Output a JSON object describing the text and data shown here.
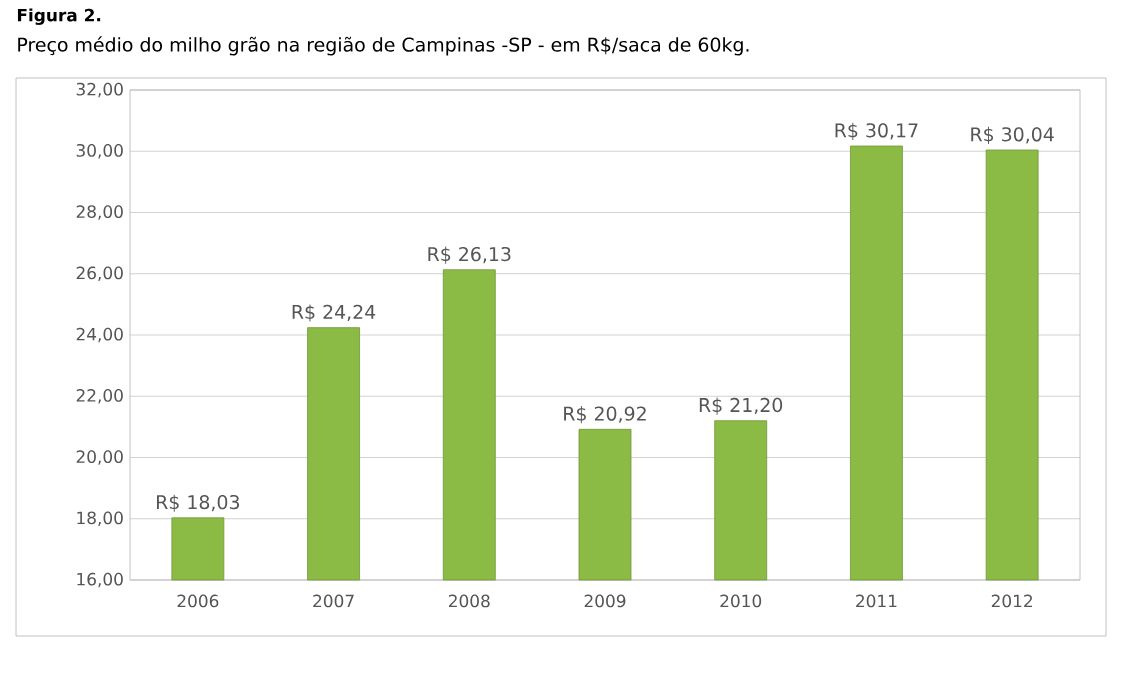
{
  "chart_data": {
    "type": "bar",
    "title": "Figura 2.",
    "subtitle": "Preço médio do milho grão na região de Campinas -SP - em R$/saca de 60kg.",
    "categories": [
      "2006",
      "2007",
      "2008",
      "2009",
      "2010",
      "2011",
      "2012"
    ],
    "values": [
      18.03,
      24.24,
      26.13,
      20.92,
      21.2,
      30.17,
      30.04
    ],
    "value_labels": [
      "R$ 18,03",
      "R$ 24,24",
      "R$ 26,13",
      "R$ 20,92",
      "R$ 21,20",
      "R$ 30,17",
      "R$ 30,04"
    ],
    "color": "#8cbb45",
    "ylim": [
      16,
      32
    ],
    "yticks": [
      {
        "value": 16,
        "label": "16,00"
      },
      {
        "value": 18,
        "label": "18,00"
      },
      {
        "value": 20,
        "label": "20,00"
      },
      {
        "value": 22,
        "label": "22,00"
      },
      {
        "value": 24,
        "label": "24,00"
      },
      {
        "value": 26,
        "label": "26,00"
      },
      {
        "value": 28,
        "label": "28,00"
      },
      {
        "value": 30,
        "label": "30,00"
      },
      {
        "value": 32,
        "label": "32,00"
      }
    ],
    "grid": "y"
  }
}
